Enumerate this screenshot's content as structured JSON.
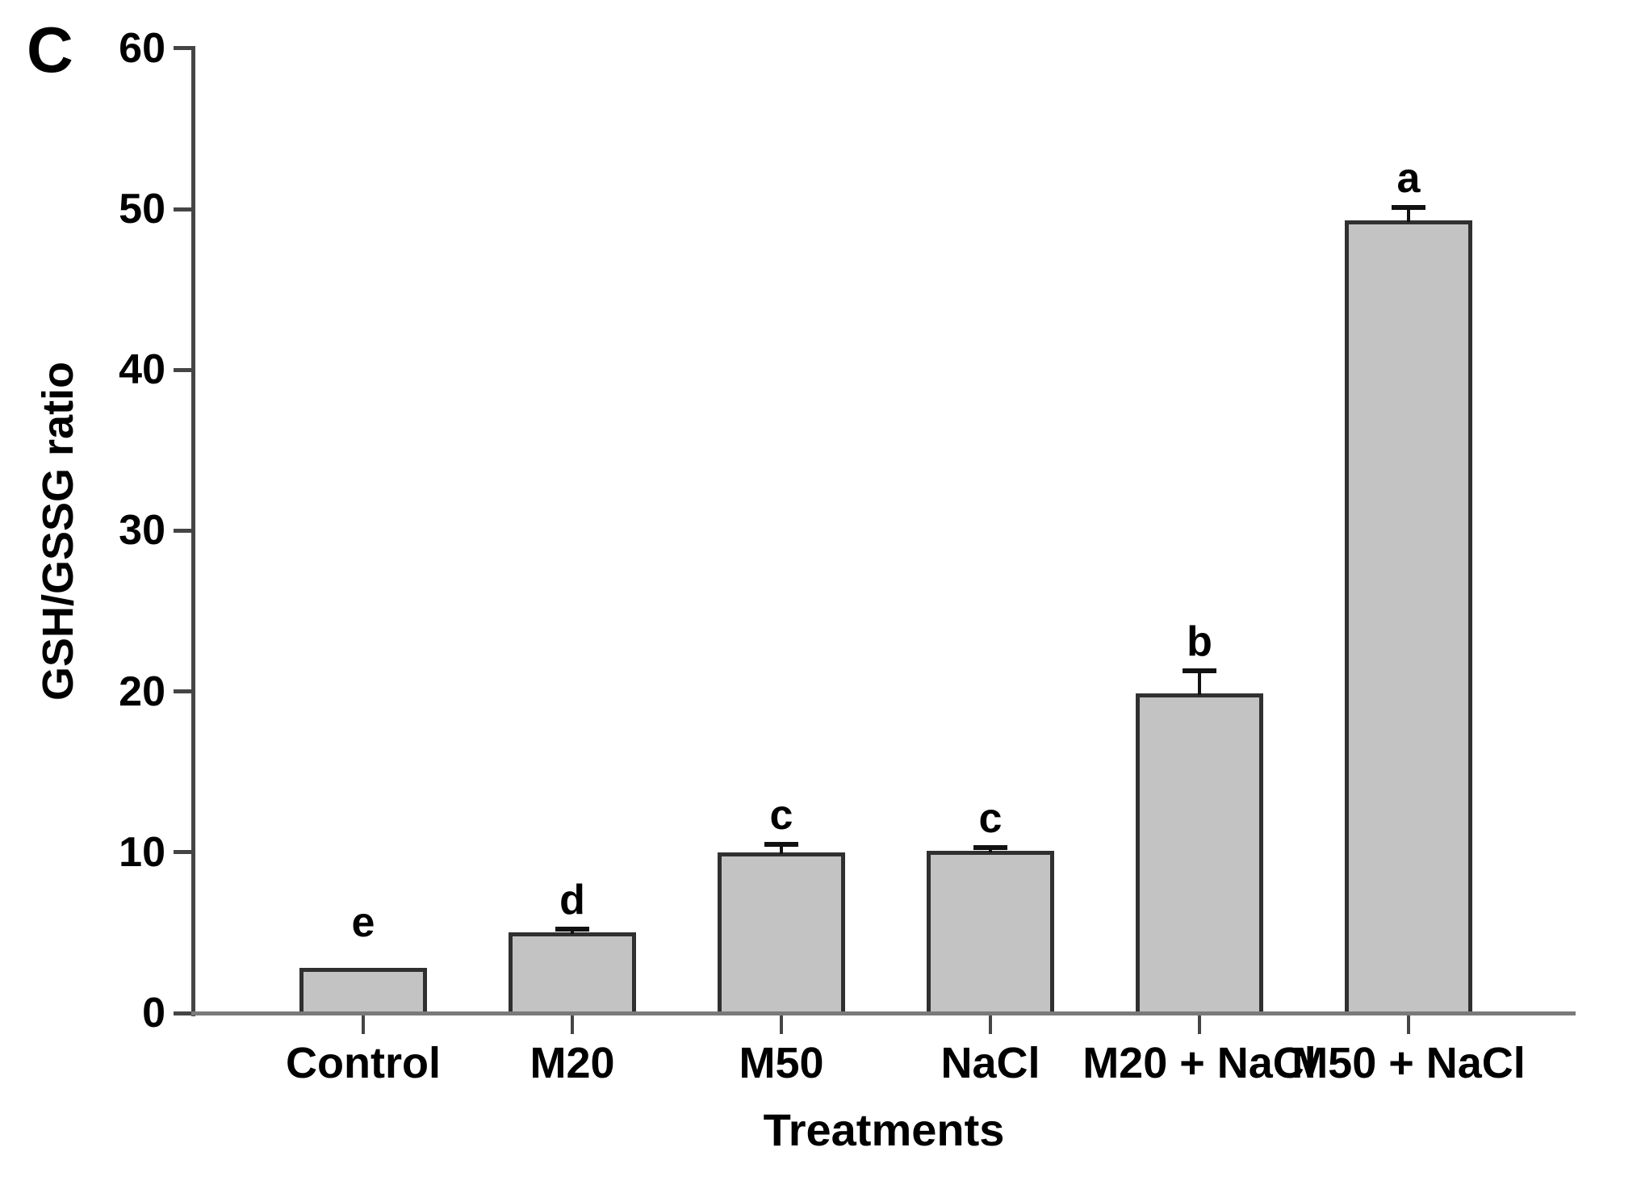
{
  "chart_data": {
    "type": "bar",
    "panel_label": "C",
    "title": "",
    "xlabel": "Treatments",
    "ylabel": "GSH/GSSG ratio",
    "categories": [
      "Control",
      "M20",
      "M50",
      "NaCl",
      "M20 + NaCl",
      "M50 + NaCl"
    ],
    "values": [
      2.8,
      5.0,
      10.0,
      10.1,
      19.9,
      49.3
    ],
    "errors": [
      0,
      0.2,
      0.5,
      0.2,
      1.4,
      0.8
    ],
    "sig_letters": [
      "e",
      "d",
      "c",
      "c",
      "b",
      "a"
    ],
    "ylim": [
      0,
      60
    ],
    "yticks": [
      0,
      10,
      20,
      30,
      40,
      50,
      60
    ],
    "grid": false,
    "legend": "none",
    "error_bar_direction": "up",
    "colors": {
      "bar_fill": "#c3c3c3",
      "bar_border": "#303030",
      "axis": "#454545",
      "baseline": "#7a7a7a",
      "error_bar": "#111111",
      "text": "#000000"
    }
  }
}
